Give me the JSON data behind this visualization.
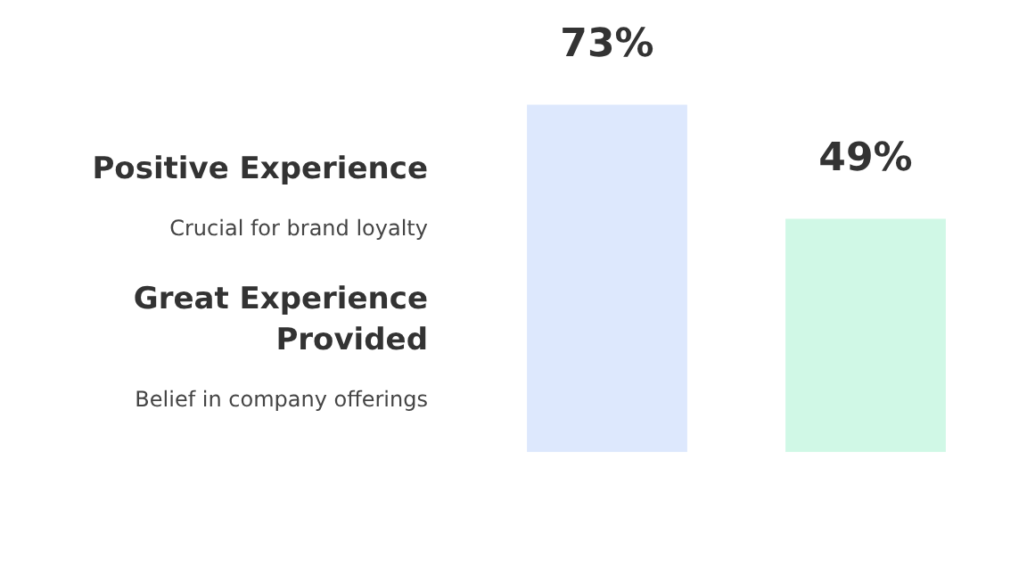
{
  "chart_data": {
    "type": "bar",
    "categories": [
      null,
      null
    ],
    "values": [
      73,
      49
    ],
    "colors": [
      "#dde8fd",
      "#d0f8e6"
    ],
    "value_labels": [
      "73%",
      "49%"
    ],
    "annotations": [
      "Positive Experience",
      "Crucial for brand loyalty",
      "Great Experience Provided",
      "Belief in company offerings"
    ],
    "grid": false,
    "legend": false
  }
}
